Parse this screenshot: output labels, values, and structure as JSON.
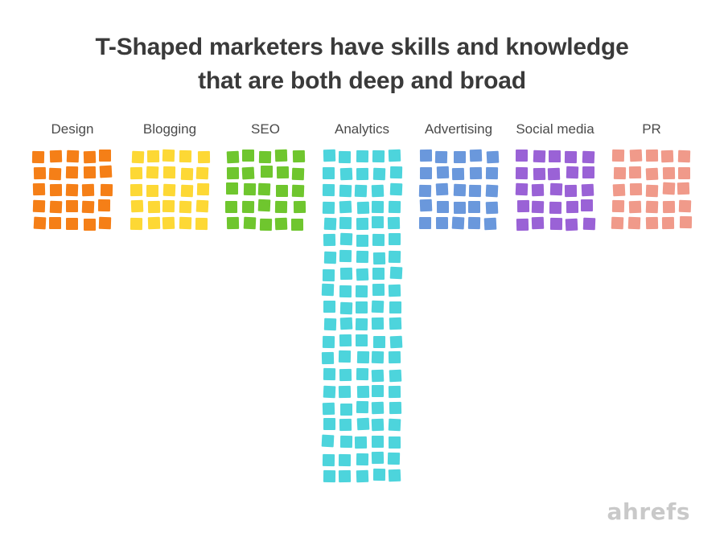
{
  "title": {
    "line1": "T-Shaped marketers have skills and knowledge",
    "line2": "that are both deep and broad"
  },
  "skills": [
    {
      "label": "Design",
      "rows": 5,
      "color": "#f57f17"
    },
    {
      "label": "Blogging",
      "rows": 5,
      "color": "#fdd835"
    },
    {
      "label": "SEO",
      "rows": 5,
      "color": "#6fc62e"
    },
    {
      "label": "Analytics",
      "rows": 20,
      "color": "#4dd4dc"
    },
    {
      "label": "Advertising",
      "rows": 5,
      "color": "#6a98dc"
    },
    {
      "label": "Social media",
      "rows": 5,
      "color": "#9a62d6"
    },
    {
      "label": "PR",
      "rows": 5,
      "color": "#f09a8a"
    }
  ],
  "squares_per_row": 5,
  "logo": "ahrefs"
}
